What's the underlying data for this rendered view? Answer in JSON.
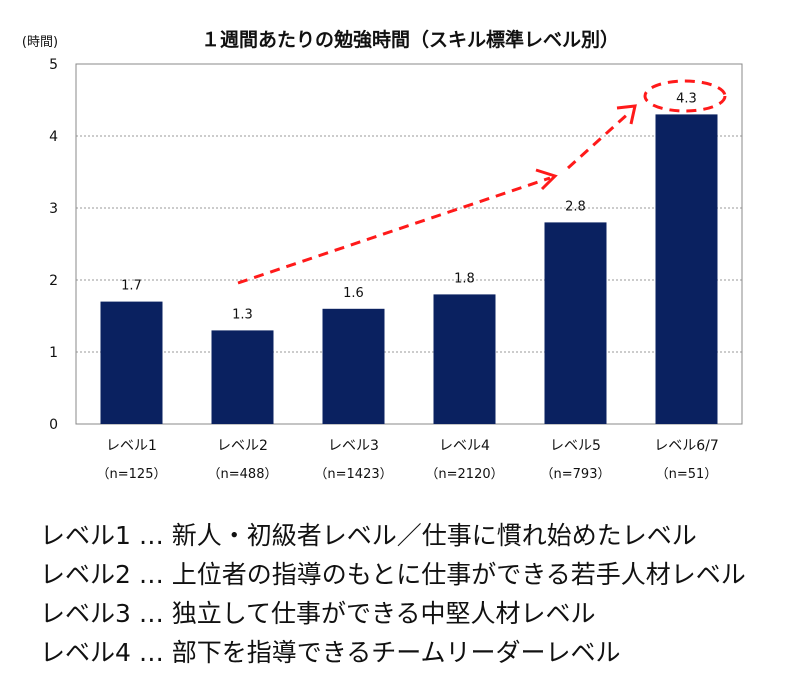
{
  "chart_data": {
    "type": "bar",
    "title": "１週間あたりの勉強時間（スキル標準レベル別）",
    "ylabel": "(時間)",
    "ylim": [
      0,
      5
    ],
    "yticks": [
      0,
      1,
      2,
      3,
      4,
      5
    ],
    "categories": [
      "レベル1",
      "レベル2",
      "レベル3",
      "レベル4",
      "レベル5",
      "レベル6/7"
    ],
    "sample_sizes": [
      "（n=125）",
      "（n=488）",
      "（n=1423）",
      "（n=2120）",
      "（n=793）",
      "（n=51）"
    ],
    "values": [
      1.7,
      1.3,
      1.6,
      1.8,
      2.8,
      4.3
    ],
    "value_labels": [
      "1.7",
      "1.3",
      "1.6",
      "1.8",
      "2.8",
      "4.3"
    ],
    "bar_color": "#0a2160",
    "annotation_color": "#ff0000",
    "grid": true,
    "annotation": "dashed red trend arrow from レベル2 to レベル6/7; 4.3 circled"
  },
  "notes": [
    "レベル1 … 新人・初級者レベル／仕事に慣れ始めたレベル",
    "レベル2 … 上位者の指導のもとに仕事ができる若手人材レベル",
    "レベル3 … 独立して仕事ができる中堅人材レベル",
    "レベル4 … 部下を指導できるチームリーダーレベル"
  ]
}
